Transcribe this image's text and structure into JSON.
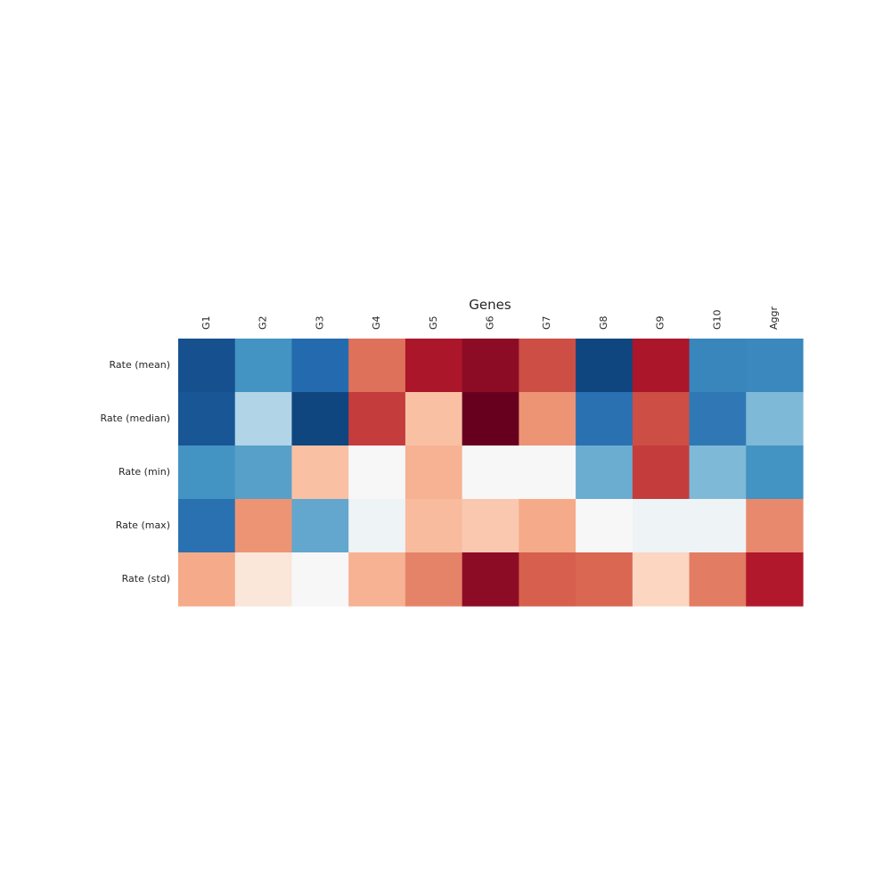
{
  "chart_data": {
    "type": "heatmap",
    "title": "Genes",
    "columns": [
      "G1",
      "G2",
      "G3",
      "G4",
      "G5",
      "G6",
      "G7",
      "G8",
      "G9",
      "G10",
      "Aggr"
    ],
    "rows": [
      "Rate (mean)",
      "Rate (median)",
      "Rate (min)",
      "Rate (max)",
      "Rate (std)"
    ],
    "values": [
      [
        -0.88,
        -0.6,
        -0.78,
        0.55,
        0.82,
        0.9,
        0.65,
        -0.92,
        0.82,
        -0.66,
        -0.65
      ],
      [
        -0.86,
        -0.3,
        -0.92,
        0.7,
        0.3,
        1.0,
        0.45,
        -0.75,
        0.65,
        -0.72,
        -0.45
      ],
      [
        -0.6,
        -0.55,
        0.3,
        0.0,
        0.35,
        0.0,
        0.0,
        -0.5,
        0.7,
        -0.45,
        -0.6
      ],
      [
        -0.75,
        0.45,
        -0.52,
        -0.05,
        0.32,
        0.27,
        0.38,
        0.0,
        -0.05,
        -0.05,
        0.48
      ],
      [
        0.38,
        0.12,
        0.0,
        0.35,
        0.5,
        0.9,
        0.6,
        0.58,
        0.22,
        0.52,
        0.8
      ]
    ],
    "vmin": -1,
    "vmax": 1,
    "colormap": "RdBu_r",
    "grid": false,
    "colorbar": false
  }
}
